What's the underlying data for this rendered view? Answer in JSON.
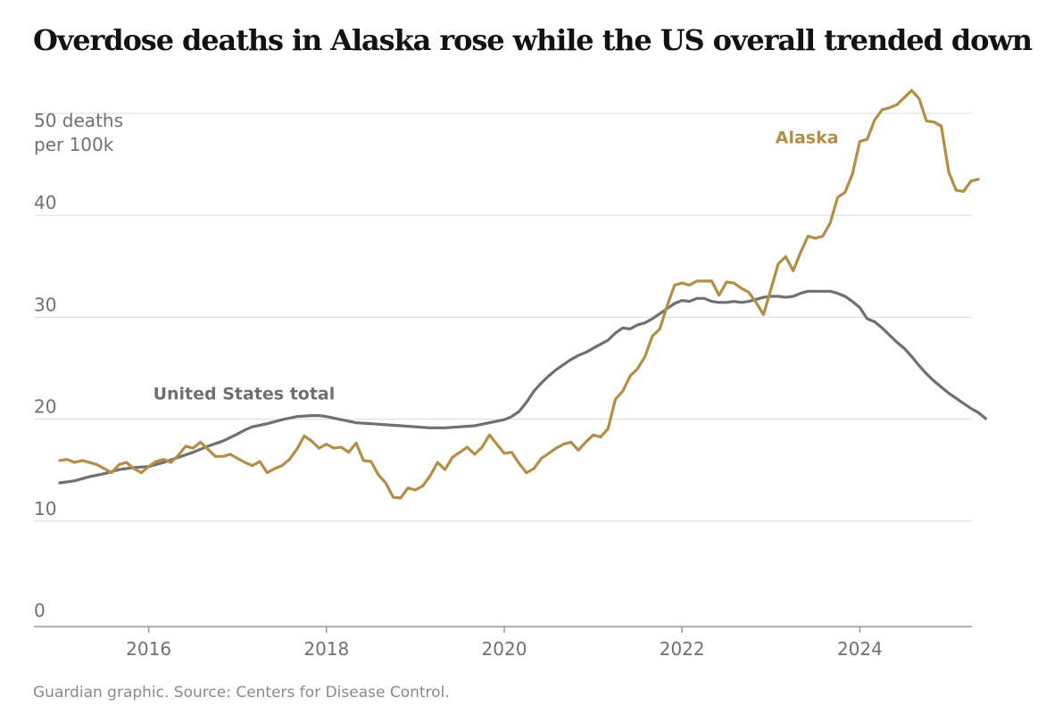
{
  "header": {
    "title": "Overdose deaths in Alaska rose while the US overall trended down"
  },
  "footer": {
    "source": "Guardian graphic. Source: Centers for Disease Control."
  },
  "colors": {
    "alaska": "#b48d47",
    "us": "#707070",
    "grid": "#dcdcdc",
    "axis": "#999999"
  },
  "chart_data": {
    "type": "line",
    "title": "Overdose deaths in Alaska rose while the US overall trended down",
    "ylabel": [
      "50 deaths",
      "per 100k"
    ],
    "xlabel": "",
    "xlim": [
      2015,
      2025.25
    ],
    "ylim": [
      0,
      50
    ],
    "y_ticks": [
      {
        "value": 0,
        "label": "0"
      },
      {
        "value": 10,
        "label": "10"
      },
      {
        "value": 20,
        "label": "20"
      },
      {
        "value": 30,
        "label": "30"
      },
      {
        "value": 40,
        "label": "40"
      },
      {
        "value": 50,
        "label": "50 deaths"
      }
    ],
    "x_ticks": [
      {
        "value": 2016,
        "label": "2016"
      },
      {
        "value": 2018,
        "label": "2018"
      },
      {
        "value": 2020,
        "label": "2020"
      },
      {
        "value": 2022,
        "label": "2022"
      },
      {
        "value": 2024,
        "label": "2024"
      }
    ],
    "grid": true,
    "series": [
      {
        "name": "Alaska",
        "label": "Alaska",
        "color": "#b48d47",
        "points": [
          [
            2015.0,
            16.3
          ],
          [
            2015.083,
            16.4
          ],
          [
            2015.167,
            16.1
          ],
          [
            2015.25,
            16.3
          ],
          [
            2015.333,
            16.1
          ],
          [
            2015.417,
            15.9
          ],
          [
            2015.5,
            15.5
          ],
          [
            2015.583,
            15.1
          ],
          [
            2015.667,
            15.9
          ],
          [
            2015.75,
            16.1
          ],
          [
            2015.833,
            15.5
          ],
          [
            2015.917,
            15.1
          ],
          [
            2016.0,
            15.7
          ],
          [
            2016.083,
            16.2
          ],
          [
            2016.167,
            16.4
          ],
          [
            2016.25,
            16.1
          ],
          [
            2016.333,
            16.8
          ],
          [
            2016.417,
            17.7
          ],
          [
            2016.5,
            17.5
          ],
          [
            2016.583,
            18.1
          ],
          [
            2016.667,
            17.4
          ],
          [
            2016.75,
            16.7
          ],
          [
            2016.833,
            16.7
          ],
          [
            2016.917,
            16.9
          ],
          [
            2017.0,
            16.5
          ],
          [
            2017.083,
            16.1
          ],
          [
            2017.167,
            15.8
          ],
          [
            2017.25,
            16.2
          ],
          [
            2017.333,
            15.1
          ],
          [
            2017.417,
            15.5
          ],
          [
            2017.5,
            15.8
          ],
          [
            2017.583,
            16.4
          ],
          [
            2017.667,
            17.4
          ],
          [
            2017.75,
            18.7
          ],
          [
            2017.833,
            18.2
          ],
          [
            2017.917,
            17.5
          ],
          [
            2018.0,
            17.9
          ],
          [
            2018.083,
            17.5
          ],
          [
            2018.167,
            17.6
          ],
          [
            2018.25,
            17.1
          ],
          [
            2018.333,
            18.0
          ],
          [
            2018.417,
            16.3
          ],
          [
            2018.5,
            16.2
          ],
          [
            2018.583,
            14.9
          ],
          [
            2018.667,
            14.1
          ],
          [
            2018.75,
            12.7
          ],
          [
            2018.833,
            12.6
          ],
          [
            2018.917,
            13.6
          ],
          [
            2019.0,
            13.4
          ],
          [
            2019.083,
            13.8
          ],
          [
            2019.167,
            14.8
          ],
          [
            2019.25,
            16.1
          ],
          [
            2019.333,
            15.4
          ],
          [
            2019.417,
            16.6
          ],
          [
            2019.5,
            17.1
          ],
          [
            2019.583,
            17.6
          ],
          [
            2019.667,
            16.9
          ],
          [
            2019.75,
            17.6
          ],
          [
            2019.833,
            18.8
          ],
          [
            2019.917,
            17.9
          ],
          [
            2020.0,
            17.0
          ],
          [
            2020.083,
            17.1
          ],
          [
            2020.167,
            16.0
          ],
          [
            2020.25,
            15.1
          ],
          [
            2020.333,
            15.5
          ],
          [
            2020.417,
            16.5
          ],
          [
            2020.5,
            17.0
          ],
          [
            2020.583,
            17.5
          ],
          [
            2020.667,
            17.9
          ],
          [
            2020.75,
            18.1
          ],
          [
            2020.833,
            17.3
          ],
          [
            2020.917,
            18.1
          ],
          [
            2021.0,
            18.8
          ],
          [
            2021.083,
            18.6
          ],
          [
            2021.167,
            19.4
          ],
          [
            2021.25,
            22.3
          ],
          [
            2021.333,
            23.1
          ],
          [
            2021.417,
            24.6
          ],
          [
            2021.5,
            25.3
          ],
          [
            2021.583,
            26.5
          ],
          [
            2021.667,
            28.5
          ],
          [
            2021.75,
            29.2
          ],
          [
            2021.833,
            31.5
          ],
          [
            2021.917,
            33.5
          ],
          [
            2022.0,
            33.7
          ],
          [
            2022.083,
            33.5
          ],
          [
            2022.167,
            33.9
          ],
          [
            2022.25,
            33.9
          ],
          [
            2022.333,
            33.9
          ],
          [
            2022.417,
            32.5
          ],
          [
            2022.5,
            33.8
          ],
          [
            2022.583,
            33.7
          ],
          [
            2022.667,
            33.2
          ],
          [
            2022.75,
            32.8
          ],
          [
            2022.833,
            31.8
          ],
          [
            2022.917,
            30.6
          ],
          [
            2023.0,
            33.1
          ],
          [
            2023.083,
            35.6
          ],
          [
            2023.167,
            36.3
          ],
          [
            2023.25,
            34.9
          ],
          [
            2023.333,
            36.7
          ],
          [
            2023.417,
            38.3
          ],
          [
            2023.5,
            38.1
          ],
          [
            2023.583,
            38.3
          ],
          [
            2023.667,
            39.6
          ],
          [
            2023.75,
            42.1
          ],
          [
            2023.833,
            42.6
          ],
          [
            2023.917,
            44.4
          ],
          [
            2024.0,
            47.6
          ],
          [
            2024.083,
            47.8
          ],
          [
            2024.167,
            49.7
          ],
          [
            2024.25,
            50.7
          ],
          [
            2024.333,
            50.9
          ],
          [
            2024.417,
            51.2
          ],
          [
            2024.5,
            51.9
          ],
          [
            2024.583,
            52.6
          ],
          [
            2024.667,
            51.8
          ],
          [
            2024.75,
            49.6
          ],
          [
            2024.833,
            49.5
          ],
          [
            2024.917,
            49.1
          ],
          [
            2025.0,
            44.6
          ],
          [
            2025.083,
            42.8
          ],
          [
            2025.167,
            42.7
          ],
          [
            2025.25,
            43.7
          ],
          [
            2025.333,
            43.9
          ]
        ]
      },
      {
        "name": "United States total",
        "label": "United States total",
        "color": "#707070",
        "points": [
          [
            2015.0,
            14.1
          ],
          [
            2015.167,
            14.3
          ],
          [
            2015.333,
            14.7
          ],
          [
            2015.5,
            15.0
          ],
          [
            2015.667,
            15.4
          ],
          [
            2015.833,
            15.6
          ],
          [
            2016.0,
            15.7
          ],
          [
            2016.167,
            16.1
          ],
          [
            2016.333,
            16.6
          ],
          [
            2016.5,
            17.1
          ],
          [
            2016.667,
            17.7
          ],
          [
            2016.833,
            18.2
          ],
          [
            2017.0,
            18.9
          ],
          [
            2017.083,
            19.3
          ],
          [
            2017.167,
            19.6
          ],
          [
            2017.333,
            19.9
          ],
          [
            2017.5,
            20.3
          ],
          [
            2017.667,
            20.6
          ],
          [
            2017.833,
            20.7
          ],
          [
            2017.917,
            20.7
          ],
          [
            2018.0,
            20.6
          ],
          [
            2018.167,
            20.3
          ],
          [
            2018.333,
            20.0
          ],
          [
            2018.5,
            19.9
          ],
          [
            2018.667,
            19.8
          ],
          [
            2018.833,
            19.7
          ],
          [
            2019.0,
            19.6
          ],
          [
            2019.167,
            19.5
          ],
          [
            2019.333,
            19.5
          ],
          [
            2019.5,
            19.6
          ],
          [
            2019.667,
            19.7
          ],
          [
            2019.833,
            20.0
          ],
          [
            2020.0,
            20.3
          ],
          [
            2020.083,
            20.6
          ],
          [
            2020.167,
            21.1
          ],
          [
            2020.25,
            22.0
          ],
          [
            2020.333,
            23.1
          ],
          [
            2020.417,
            23.9
          ],
          [
            2020.5,
            24.6
          ],
          [
            2020.583,
            25.2
          ],
          [
            2020.667,
            25.7
          ],
          [
            2020.75,
            26.2
          ],
          [
            2020.833,
            26.6
          ],
          [
            2020.917,
            26.9
          ],
          [
            2021.0,
            27.3
          ],
          [
            2021.083,
            27.7
          ],
          [
            2021.167,
            28.1
          ],
          [
            2021.25,
            28.8
          ],
          [
            2021.333,
            29.3
          ],
          [
            2021.417,
            29.2
          ],
          [
            2021.5,
            29.6
          ],
          [
            2021.583,
            29.8
          ],
          [
            2021.667,
            30.2
          ],
          [
            2021.75,
            30.7
          ],
          [
            2021.833,
            31.2
          ],
          [
            2021.917,
            31.7
          ],
          [
            2022.0,
            32.0
          ],
          [
            2022.083,
            31.9
          ],
          [
            2022.167,
            32.2
          ],
          [
            2022.25,
            32.2
          ],
          [
            2022.333,
            31.9
          ],
          [
            2022.417,
            31.8
          ],
          [
            2022.5,
            31.8
          ],
          [
            2022.583,
            31.9
          ],
          [
            2022.667,
            31.8
          ],
          [
            2022.75,
            31.9
          ],
          [
            2022.833,
            32.1
          ],
          [
            2022.917,
            32.3
          ],
          [
            2023.0,
            32.4
          ],
          [
            2023.083,
            32.4
          ],
          [
            2023.167,
            32.3
          ],
          [
            2023.25,
            32.4
          ],
          [
            2023.333,
            32.7
          ],
          [
            2023.417,
            32.9
          ],
          [
            2023.5,
            32.9
          ],
          [
            2023.583,
            32.9
          ],
          [
            2023.667,
            32.9
          ],
          [
            2023.75,
            32.7
          ],
          [
            2023.833,
            32.4
          ],
          [
            2023.917,
            31.9
          ],
          [
            2024.0,
            31.3
          ],
          [
            2024.083,
            30.2
          ],
          [
            2024.167,
            29.9
          ],
          [
            2024.25,
            29.3
          ],
          [
            2024.333,
            28.6
          ],
          [
            2024.417,
            27.9
          ],
          [
            2024.5,
            27.3
          ],
          [
            2024.583,
            26.5
          ],
          [
            2024.667,
            25.6
          ],
          [
            2024.75,
            24.8
          ],
          [
            2024.833,
            24.1
          ],
          [
            2024.917,
            23.5
          ],
          [
            2025.0,
            22.9
          ],
          [
            2025.083,
            22.4
          ],
          [
            2025.167,
            21.9
          ],
          [
            2025.25,
            21.4
          ],
          [
            2025.333,
            21.0
          ],
          [
            2025.417,
            20.4
          ]
        ]
      }
    ]
  }
}
